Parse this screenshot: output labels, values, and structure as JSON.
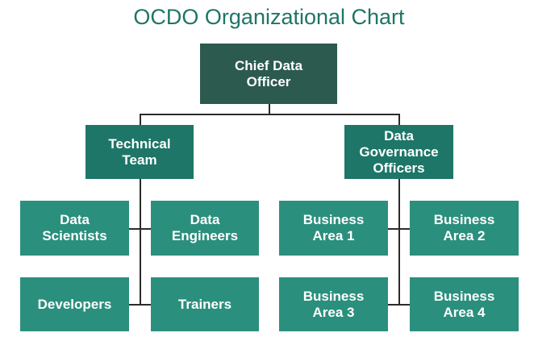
{
  "title": "OCDO Organizational Chart",
  "colors": {
    "title": "#1f7566",
    "top_box": "#2c5a4f",
    "mid_box": "#1d7668",
    "leaf_box": "#2b8f7d",
    "connector": "#2b2b2b"
  },
  "nodes": {
    "chief": "Chief Data\nOfficer",
    "technical": "Technical\nTeam",
    "governance": "Data\nGovernance\nOfficers",
    "data_scientists": "Data\nScientists",
    "data_engineers": "Data\nEngineers",
    "developers": "Developers",
    "trainers": "Trainers",
    "business_area_1": "Business\nArea 1",
    "business_area_2": "Business\nArea 2",
    "business_area_3": "Business\nArea 3",
    "business_area_4": "Business\nArea 4"
  }
}
